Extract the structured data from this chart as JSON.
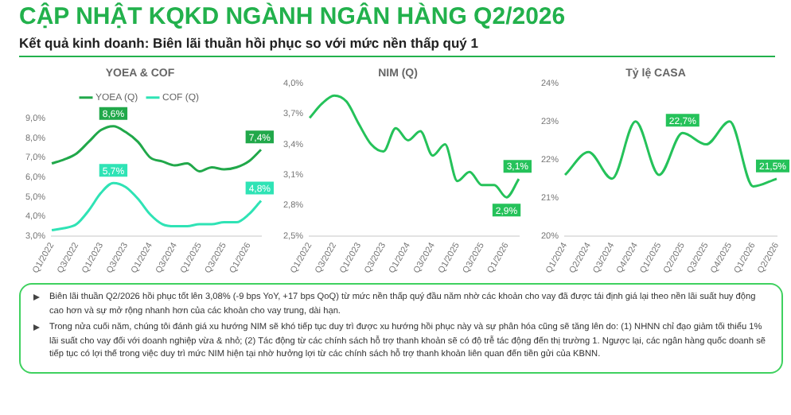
{
  "chart_data": [
    {
      "type": "other",
      "title": "CẬP NHẬT KQKD NGÀNH NGÂN HÀNG Q2/2026",
      "subtitle": "Kết quả kinh doanh: Biên lãi thuần hồi phục so với mức nền thấp quý 1"
    },
    {
      "type": "line",
      "title": "YOEA & COF",
      "categories": [
        "Q1/2022",
        null,
        "Q3/2022",
        null,
        "Q1/2023",
        null,
        "Q3/2023",
        null,
        "Q1/2024",
        null,
        "Q3/2024",
        null,
        "Q1/2025",
        null,
        "Q3/2025",
        null,
        "Q1/2026",
        null
      ],
      "series": [
        {
          "name": "YOEA (Q)",
          "color": "#21a84a",
          "values": [
            6.7,
            6.9,
            7.2,
            7.8,
            8.4,
            8.6,
            8.3,
            7.8,
            7.0,
            6.8,
            6.6,
            6.7,
            6.3,
            6.5,
            6.4,
            6.5,
            6.8,
            7.4
          ],
          "value_labels": [
            null,
            null,
            null,
            null,
            null,
            "8,6%",
            null,
            null,
            null,
            null,
            null,
            null,
            null,
            null,
            null,
            null,
            null,
            "7,4%"
          ]
        },
        {
          "name": "COF (Q)",
          "color": "#2fe3b5",
          "values": [
            3.3,
            3.4,
            3.6,
            4.3,
            5.2,
            5.7,
            5.5,
            4.9,
            4.1,
            3.6,
            3.5,
            3.5,
            3.6,
            3.6,
            3.7,
            3.7,
            4.1,
            4.8
          ],
          "value_labels": [
            null,
            null,
            null,
            null,
            null,
            "5,7%",
            null,
            null,
            null,
            null,
            null,
            null,
            null,
            null,
            null,
            null,
            null,
            "4,8%"
          ]
        }
      ],
      "ylim": [
        3,
        9
      ],
      "yticks": [
        {
          "value": 3,
          "label": "3,0%"
        },
        {
          "value": 4,
          "label": "4,0%"
        },
        {
          "value": 5,
          "label": "5,0%"
        },
        {
          "value": 6,
          "label": "6,0%"
        },
        {
          "value": 7,
          "label": "7,0%"
        },
        {
          "value": 8,
          "label": "8,0%"
        },
        {
          "value": 9,
          "label": "9,0%"
        }
      ],
      "grid": false,
      "legend": "top",
      "marker": "none",
      "line_style": "solid"
    },
    {
      "type": "line",
      "title": "NIM (Q)",
      "categories": [
        "Q1/2022",
        null,
        "Q3/2022",
        null,
        "Q1/2023",
        null,
        "Q3/2023",
        null,
        "Q1/2024",
        null,
        "Q3/2024",
        null,
        "Q1/2025",
        null,
        "Q3/2025",
        null,
        "Q1/2026",
        null
      ],
      "series": [
        {
          "color": "#25c25a",
          "values": [
            3.66,
            3.8,
            3.88,
            3.82,
            3.6,
            3.4,
            3.33,
            3.56,
            3.44,
            3.53,
            3.29,
            3.4,
            3.04,
            3.13,
            3.0,
            3.0,
            2.88,
            3.06
          ],
          "value_labels": [
            null,
            null,
            null,
            null,
            null,
            null,
            null,
            null,
            null,
            null,
            null,
            null,
            null,
            null,
            null,
            null,
            "2,9%",
            "3,1%"
          ]
        }
      ],
      "ylim": [
        2.5,
        4.0
      ],
      "yticks": [
        {
          "value": 2.5,
          "label": "2,5%"
        },
        {
          "value": 2.8,
          "label": "2,8%"
        },
        {
          "value": 3.1,
          "label": "3,1%"
        },
        {
          "value": 3.4,
          "label": "3,4%"
        },
        {
          "value": 3.7,
          "label": "3,7%"
        },
        {
          "value": 4.0,
          "label": "4,0%"
        }
      ],
      "grid": false,
      "marker": "none",
      "line_style": "solid"
    },
    {
      "type": "line",
      "title": "Tỷ lệ CASA",
      "categories": [
        "Q1/2024",
        "Q2/2024",
        "Q3/2024",
        "Q4/2024",
        "Q1/2025",
        "Q2/2025",
        "Q3/2025",
        "Q4/2025",
        "Q1/2026",
        "Q2/2026"
      ],
      "series": [
        {
          "color": "#25c25a",
          "values": [
            21.6,
            22.2,
            21.5,
            23.0,
            21.6,
            22.7,
            22.4,
            23.0,
            21.3,
            21.5
          ],
          "value_labels": [
            null,
            null,
            null,
            null,
            null,
            "22,7%",
            null,
            null,
            null,
            "21,5%"
          ]
        }
      ],
      "ylim": [
        20,
        24
      ],
      "yticks": [
        {
          "value": 20,
          "label": "20%"
        },
        {
          "value": 21,
          "label": "21%"
        },
        {
          "value": 22,
          "label": "22%"
        },
        {
          "value": 23,
          "label": "23%"
        },
        {
          "value": 24,
          "label": "24%"
        }
      ],
      "grid": false,
      "marker": "none",
      "line_style": "solid"
    },
    {
      "type": "other",
      "annotations": [
        "Biên lãi thuần Q2/2026 hồi phục tốt lên 3,08% (-9 bps YoY, +17 bps QoQ) từ mức nền thấp quý đầu năm nhờ các khoản cho vay đã được tái định giá lại theo nền lãi suất huy động cao hơn và sự mở rộng nhanh hơn của các khoản cho vay trung, dài hạn.",
        "Trong nửa cuối năm, chúng tôi đánh giá xu hướng NIM sẽ khó tiếp tục duy trì được xu hướng hồi phục này và sự phân hóa cũng sẽ tăng lên do: (1) NHNN chỉ đạo giảm tối thiểu 1% lãi suất cho vay đối với doanh nghiệp vừa & nhỏ; (2) Tác động từ các chính sách hỗ trợ thanh khoản sẽ có độ trễ tác động đến thị trường 1. Ngược lại, các ngân hàng quốc doanh sẽ tiếp tục có lợi thế trong việc duy trì mức NIM hiện tại nhờ hưởng lợi từ các chính sách hỗ trợ thanh khoản liên quan đến tiền gửi của KBNN."
      ]
    }
  ]
}
